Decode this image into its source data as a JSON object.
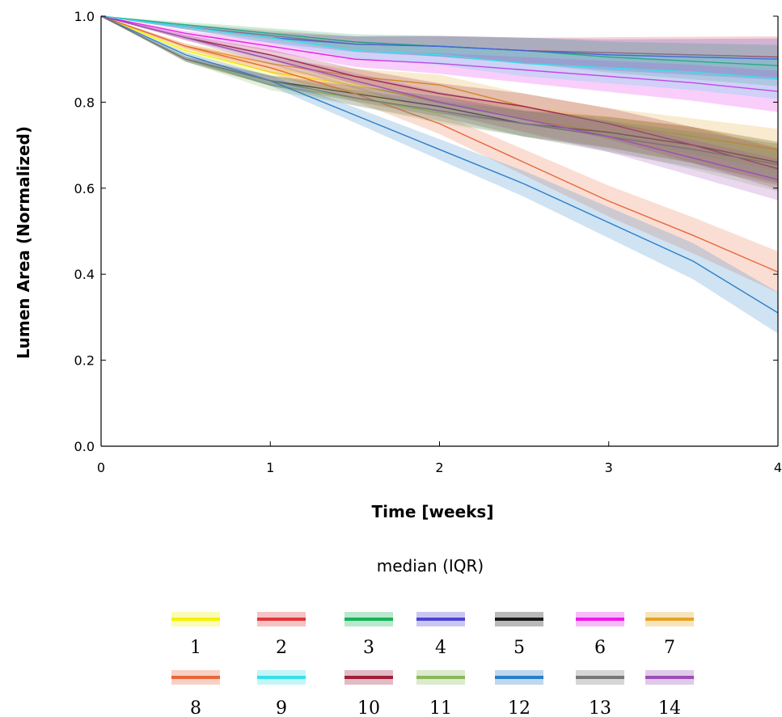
{
  "chart_data": {
    "type": "line",
    "xlabel": "Time [weeks]",
    "ylabel": "Lumen Area (Normalized)",
    "xlim": [
      0,
      4
    ],
    "ylim": [
      0,
      1
    ],
    "xticks": [
      "0",
      "1",
      "2",
      "3",
      "4"
    ],
    "yticks": [
      "0.0",
      "0.2",
      "0.4",
      "0.6",
      "0.8",
      "1.0"
    ],
    "grid": false,
    "legend_title": "median (IQR)",
    "legend_position": "bottom",
    "x": [
      0,
      0.5,
      1,
      1.5,
      2,
      2.5,
      3,
      3.5,
      4
    ],
    "series": [
      {
        "name": "1",
        "color": "#f2f20a",
        "values": [
          1.0,
          0.92,
          0.87,
          0.84,
          0.8,
          0.76,
          0.73,
          0.7,
          0.655
        ]
      },
      {
        "name": "2",
        "color": "#e0373c",
        "values": [
          1.0,
          0.975,
          0.955,
          0.935,
          0.93,
          0.92,
          0.915,
          0.91,
          0.905
        ]
      },
      {
        "name": "3",
        "color": "#18b359",
        "values": [
          1.0,
          0.98,
          0.96,
          0.94,
          0.93,
          0.92,
          0.905,
          0.895,
          0.885
        ]
      },
      {
        "name": "4",
        "color": "#4d44d1",
        "values": [
          1.0,
          0.975,
          0.95,
          0.935,
          0.93,
          0.92,
          0.91,
          0.905,
          0.9
        ]
      },
      {
        "name": "5",
        "color": "#1a1a1a",
        "values": [
          1.0,
          0.9,
          0.85,
          0.82,
          0.79,
          0.75,
          0.73,
          0.7,
          0.66
        ]
      },
      {
        "name": "6",
        "color": "#e81ee8",
        "values": [
          1.0,
          0.96,
          0.93,
          0.9,
          0.89,
          0.875,
          0.86,
          0.845,
          0.825
        ]
      },
      {
        "name": "7",
        "color": "#e3a523",
        "values": [
          1.0,
          0.93,
          0.89,
          0.86,
          0.84,
          0.79,
          0.75,
          0.72,
          0.69
        ]
      },
      {
        "name": "8",
        "color": "#e8673a",
        "values": [
          1.0,
          0.93,
          0.88,
          0.82,
          0.75,
          0.66,
          0.57,
          0.49,
          0.405
        ]
      },
      {
        "name": "9",
        "color": "#38e0ec",
        "values": [
          1.0,
          0.975,
          0.95,
          0.92,
          0.91,
          0.89,
          0.88,
          0.87,
          0.855
        ]
      },
      {
        "name": "10",
        "color": "#a01e3a",
        "values": [
          1.0,
          0.95,
          0.91,
          0.86,
          0.82,
          0.79,
          0.75,
          0.7,
          0.645
        ]
      },
      {
        "name": "11",
        "color": "#8ab85a",
        "values": [
          1.0,
          0.9,
          0.84,
          0.81,
          0.775,
          0.75,
          0.725,
          0.685,
          0.64
        ]
      },
      {
        "name": "12",
        "color": "#2a7ec8",
        "values": [
          1.0,
          0.91,
          0.85,
          0.77,
          0.69,
          0.61,
          0.52,
          0.43,
          0.31
        ]
      },
      {
        "name": "13",
        "color": "#777777",
        "values": [
          1.0,
          0.9,
          0.85,
          0.81,
          0.78,
          0.75,
          0.72,
          0.69,
          0.655
        ]
      },
      {
        "name": "14",
        "color": "#9b4fb5",
        "values": [
          1.0,
          0.95,
          0.9,
          0.85,
          0.8,
          0.76,
          0.72,
          0.67,
          0.62
        ]
      }
    ]
  }
}
